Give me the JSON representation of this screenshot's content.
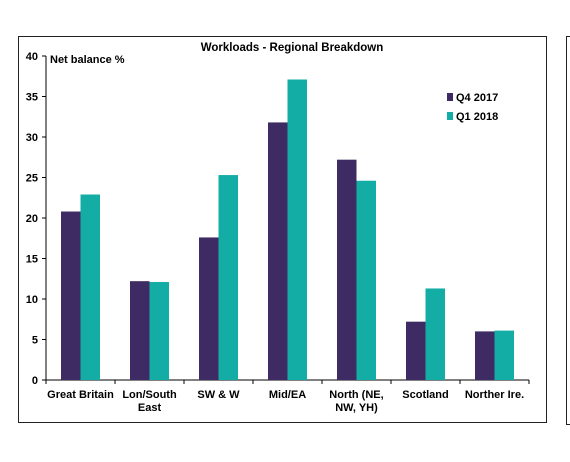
{
  "chart_data": {
    "type": "bar",
    "title": "Workloads - Regional Breakdown",
    "ylabel": "Net balance %",
    "xlabel": "",
    "ylim": [
      0,
      40
    ],
    "yticks": [
      "0",
      "5",
      "10",
      "15",
      "20",
      "25",
      "30",
      "35",
      "40"
    ],
    "grid": false,
    "legend_position": "right",
    "categories": [
      [
        "Great Britain"
      ],
      [
        "Lon/South",
        "East"
      ],
      [
        "SW & W"
      ],
      [
        "Mid/EA"
      ],
      [
        "North (NE,",
        "NW, YH)"
      ],
      [
        "Scotland"
      ],
      [
        "Norther Ire."
      ]
    ],
    "series": [
      {
        "name": "Q4 2017",
        "color": "#3f2b63",
        "values": [
          20.8,
          12.2,
          17.6,
          31.8,
          27.2,
          7.2,
          6.0
        ]
      },
      {
        "name": "Q1 2018",
        "color": "#13ada5",
        "values": [
          22.9,
          12.1,
          25.3,
          37.1,
          24.6,
          11.3,
          6.1
        ]
      }
    ]
  }
}
